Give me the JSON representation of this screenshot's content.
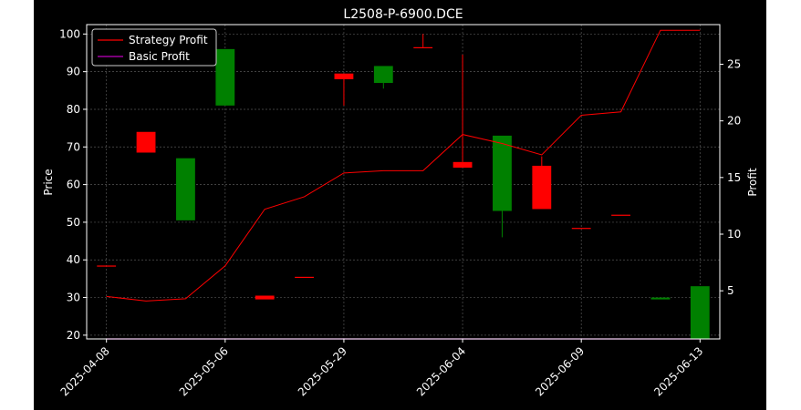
{
  "chart_data": {
    "type": "candlestick",
    "title": "L2508-P-6900.DCE",
    "xlabel": "",
    "ylabel": "Price",
    "y2label": "Profit",
    "x_tick_labels": [
      "2025-04-08",
      "2025-05-06",
      "2025-05-29",
      "2025-06-04",
      "2025-06-09",
      "2025-06-13"
    ],
    "y_ticks": [
      20,
      30,
      40,
      50,
      60,
      70,
      80,
      90,
      100
    ],
    "y_tick_labels": [
      "20",
      "30",
      "40",
      "50",
      "60",
      "70",
      "80",
      "90",
      "100"
    ],
    "ylim": [
      19,
      102.5
    ],
    "y2_ticks": [
      5,
      10,
      15,
      20,
      25
    ],
    "y2_tick_labels": [
      "5",
      "10",
      "15",
      "20",
      "25"
    ],
    "y2lim": [
      0.75,
      28.5
    ],
    "grid": true,
    "legend_position": "upper-left",
    "candles": [
      {
        "open": 38.5,
        "high": 38.5,
        "low": 38.5,
        "close": 38.5,
        "color": "red"
      },
      {
        "open": 74.0,
        "high": 74.0,
        "low": 68.5,
        "close": 68.5,
        "color": "red"
      },
      {
        "open": 50.5,
        "high": 67.0,
        "low": 50.5,
        "close": 67.0,
        "color": "green"
      },
      {
        "open": 81.0,
        "high": 96.0,
        "low": 81.0,
        "close": 96.0,
        "color": "green"
      },
      {
        "open": 30.5,
        "high": 30.5,
        "low": 29.5,
        "close": 29.5,
        "color": "red"
      },
      {
        "open": 35.5,
        "high": 35.5,
        "low": 35.5,
        "close": 35.5,
        "color": "red"
      },
      {
        "open": 89.5,
        "high": 89.5,
        "low": 81.0,
        "close": 88.0,
        "color": "red"
      },
      {
        "open": 87.0,
        "high": 91.5,
        "low": 85.5,
        "close": 91.5,
        "color": "green"
      },
      {
        "open": 96.5,
        "high": 100.0,
        "low": 96.5,
        "close": 96.5,
        "color": "red"
      },
      {
        "open": 66.0,
        "high": 94.5,
        "low": 64.5,
        "close": 64.5,
        "color": "red"
      },
      {
        "open": 53.0,
        "high": 73.0,
        "low": 46.0,
        "close": 73.0,
        "color": "green"
      },
      {
        "open": 65.0,
        "high": 67.5,
        "low": 53.5,
        "close": 53.5,
        "color": "red"
      },
      {
        "open": 48.5,
        "high": 48.5,
        "low": 48.5,
        "close": 48.5,
        "color": "red"
      },
      {
        "open": 52.0,
        "high": 52.0,
        "low": 52.0,
        "close": 52.0,
        "color": "red"
      },
      {
        "open": 29.5,
        "high": 30.0,
        "low": 29.5,
        "close": 30.0,
        "color": "green"
      },
      {
        "open": 19.0,
        "high": 33.0,
        "low": 19.0,
        "close": 33.0,
        "color": "green"
      }
    ],
    "series": [
      {
        "name": "Strategy Profit",
        "color": "#ff0000",
        "axis": "right",
        "values": [
          4.5,
          4.1,
          4.3,
          7.2,
          12.2,
          13.3,
          15.4,
          15.6,
          15.6,
          18.8,
          18.0,
          17.0,
          20.5,
          20.8,
          28.0,
          28.0
        ]
      },
      {
        "name": "Basic Profit",
        "color": "#bf00bf",
        "axis": "right",
        "values": [
          0.75,
          0.75,
          0.75,
          0.75,
          0.75,
          0.75,
          0.75,
          0.75,
          0.75,
          0.75,
          0.75,
          0.75,
          0.75,
          0.75,
          0.75,
          0.75
        ]
      }
    ],
    "colors": {
      "up": "#008000",
      "down": "#ff0000"
    }
  }
}
